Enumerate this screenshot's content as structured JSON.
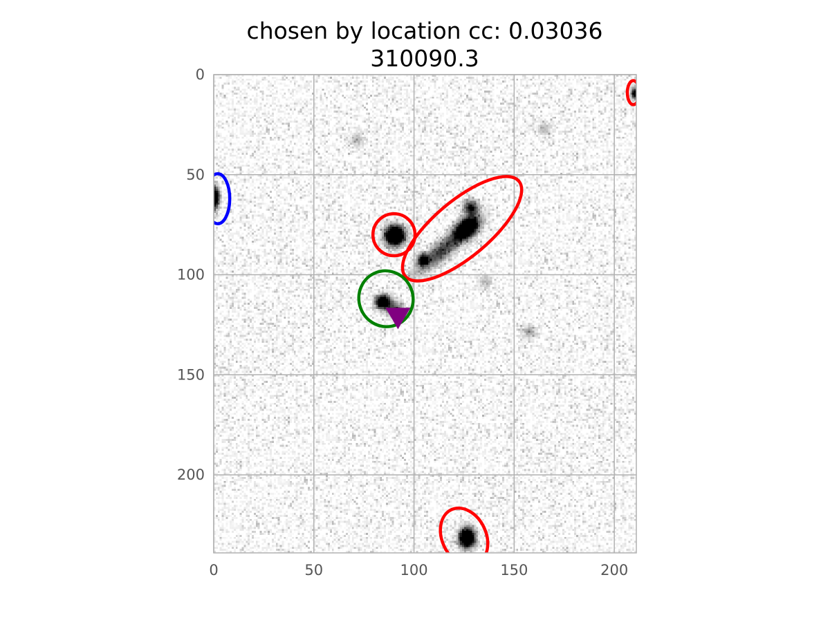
{
  "title": {
    "line1": "chosen by location cc: 0.03036",
    "line2": "310090.3"
  },
  "chart_data": {
    "type": "image",
    "x_range": [
      0,
      211
    ],
    "y_range": [
      0,
      239
    ],
    "y_inverted": true,
    "x_ticks": [
      0,
      50,
      100,
      150,
      200
    ],
    "y_ticks": [
      0,
      50,
      100,
      150,
      200
    ],
    "grid": true,
    "colormap": "gray_r",
    "sources": [
      {
        "cx": 90,
        "cy": 80,
        "brightness": 1.0,
        "sigma_x": 3.2,
        "sigma_y": 3.2,
        "angle_deg": 0
      },
      {
        "cx": 126,
        "cy": 76,
        "brightness": 0.75,
        "sigma_x": 4.5,
        "sigma_y": 3.0,
        "angle_deg": -40
      },
      {
        "cx": 114,
        "cy": 87,
        "brightness": 0.35,
        "sigma_x": 12,
        "sigma_y": 3.0,
        "angle_deg": -40
      },
      {
        "cx": 104,
        "cy": 92,
        "brightness": 0.55,
        "sigma_x": 1.8,
        "sigma_y": 1.8,
        "angle_deg": 0
      },
      {
        "cx": 128,
        "cy": 66,
        "brightness": 0.45,
        "sigma_x": 2.5,
        "sigma_y": 2.5,
        "angle_deg": 0
      },
      {
        "cx": 84,
        "cy": 113,
        "brightness": 0.8,
        "sigma_x": 2.4,
        "sigma_y": 2.2,
        "angle_deg": 0
      },
      {
        "cx": 90,
        "cy": 117,
        "brightness": 0.35,
        "sigma_x": 3.0,
        "sigma_y": 2.5,
        "angle_deg": 0
      },
      {
        "cx": 126,
        "cy": 231,
        "brightness": 0.9,
        "sigma_x": 2.6,
        "sigma_y": 3.2,
        "angle_deg": 0
      },
      {
        "cx": 0,
        "cy": 61,
        "brightness": 0.75,
        "sigma_x": 1.6,
        "sigma_y": 3.5,
        "angle_deg": 0
      },
      {
        "cx": 210,
        "cy": 9,
        "brightness": 0.55,
        "sigma_x": 1.4,
        "sigma_y": 2.0,
        "angle_deg": 0
      },
      {
        "cx": 157,
        "cy": 128,
        "brightness": 0.15,
        "sigma_x": 2.5,
        "sigma_y": 2.5,
        "angle_deg": 0
      },
      {
        "cx": 165,
        "cy": 27,
        "brightness": 0.12,
        "sigma_x": 2.5,
        "sigma_y": 2.5,
        "angle_deg": 0
      },
      {
        "cx": 71,
        "cy": 32,
        "brightness": 0.12,
        "sigma_x": 2.5,
        "sigma_y": 2.5,
        "angle_deg": 0
      },
      {
        "cx": 135,
        "cy": 103,
        "brightness": 0.12,
        "sigma_x": 2.5,
        "sigma_y": 2.5,
        "angle_deg": 0
      }
    ],
    "ellipses": [
      {
        "color": "#ff0000",
        "cx": 90,
        "cy": 80,
        "rx": 10.5,
        "ry": 10.5,
        "angle_deg": 0
      },
      {
        "color": "#ff0000",
        "cx": 124,
        "cy": 77,
        "rx": 37,
        "ry": 14,
        "angle_deg": -40
      },
      {
        "color": "#ff0000",
        "cx": 209.5,
        "cy": 9,
        "rx": 3,
        "ry": 6,
        "angle_deg": 0
      },
      {
        "color": "#ff0000",
        "cx": 125,
        "cy": 231,
        "rx": 11,
        "ry": 15,
        "angle_deg": -25
      },
      {
        "color": "#008000",
        "cx": 86,
        "cy": 112,
        "rx": 13.5,
        "ry": 14,
        "angle_deg": -20
      },
      {
        "color": "#0000ff",
        "cx": 2,
        "cy": 62,
        "rx": 6,
        "ry": 12.5,
        "angle_deg": 0
      }
    ],
    "marker": {
      "shape": "triangle-down",
      "color": "#800080",
      "x": 92,
      "y": 121
    }
  }
}
